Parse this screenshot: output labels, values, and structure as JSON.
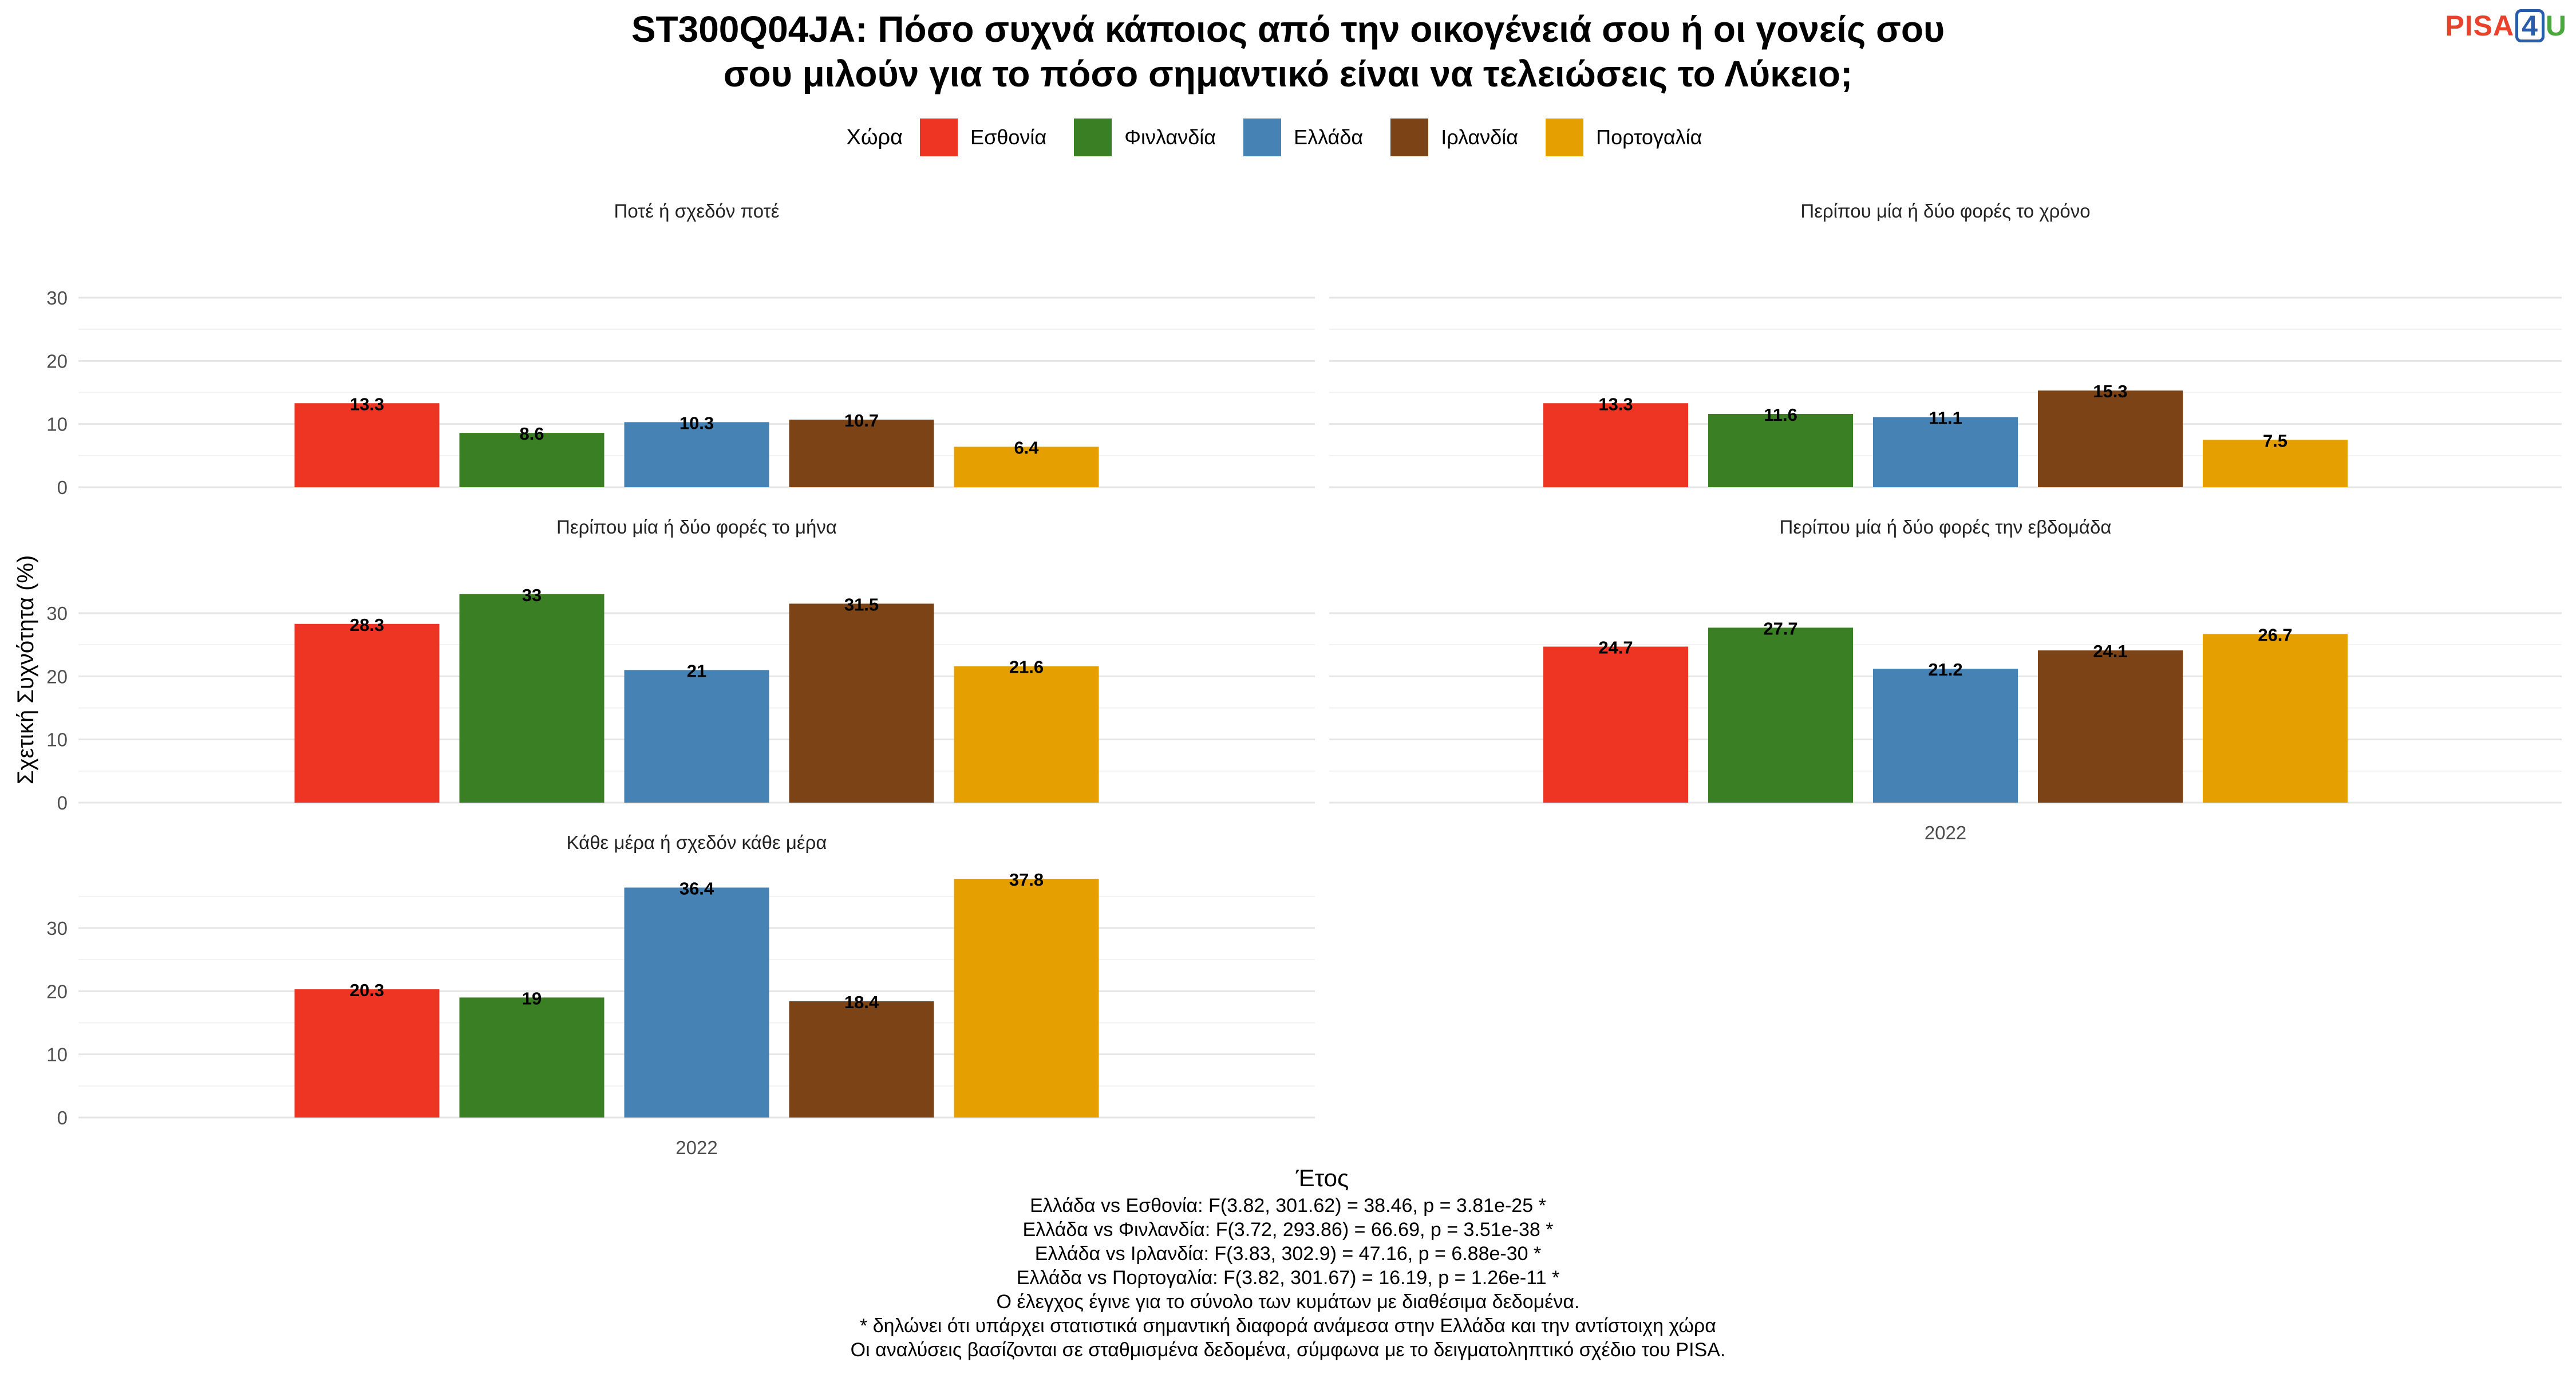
{
  "title_line1": "ST300Q04JA: Πόσο συχνά κάποιος από την οικογένειά σου ή οι γονείς σου",
  "title_line2": "σου μιλούν για το πόσο σημαντικό είναι να τελειώσεις το Λύκειο;",
  "logo": {
    "pisa": "PISA",
    "four": "4",
    "u": "U"
  },
  "legend": {
    "title": "Χώρα",
    "items": [
      {
        "name": "Εσθονία",
        "color": "#ee3524"
      },
      {
        "name": "Φινλανδία",
        "color": "#3a7f23"
      },
      {
        "name": "Ελλάδα",
        "color": "#4682b4"
      },
      {
        "name": "Ιρλανδία",
        "color": "#7b4316"
      },
      {
        "name": "Πορτογαλία",
        "color": "#e5a000"
      }
    ]
  },
  "chart_data": {
    "type": "bar",
    "xlabel": "Έτος",
    "ylabel": "Σχετική Συχνότητα (%)",
    "categories": [
      "2022"
    ],
    "series_names": [
      "Εσθονία",
      "Φινλανδία",
      "Ελλάδα",
      "Ιρλανδία",
      "Πορτογαλία"
    ],
    "y_ticks": [
      0,
      10,
      20,
      30
    ],
    "grid": true,
    "legend_position": "top",
    "panels": [
      {
        "title": "Ποτέ ή σχεδόν ποτέ",
        "values": [
          13.3,
          8.6,
          10.3,
          10.7,
          6.4
        ],
        "labels": [
          "13.3",
          "8.6",
          "10.3",
          "10.7",
          "6.4"
        ],
        "ylim": [
          0,
          33
        ]
      },
      {
        "title": "Περίπου μία ή δύο φορές το χρόνο",
        "values": [
          13.3,
          11.6,
          11.1,
          15.3,
          7.5
        ],
        "labels": [
          "13.3",
          "11.6",
          "11.1",
          "15.3",
          "7.5"
        ],
        "ylim": [
          0,
          33
        ]
      },
      {
        "title": "Περίπου μία ή δύο φορές το μήνα",
        "values": [
          28.3,
          33,
          21,
          31.5,
          21.6
        ],
        "labels": [
          "28.3",
          "33",
          "21",
          "31.5",
          "21.6"
        ],
        "ylim": [
          0,
          33
        ]
      },
      {
        "title": "Περίπου μία ή δύο φορές την εβδομάδα",
        "values": [
          24.7,
          27.7,
          21.2,
          24.1,
          26.7
        ],
        "labels": [
          "24.7",
          "27.7",
          "21.2",
          "24.1",
          "26.7"
        ],
        "ylim": [
          0,
          33
        ]
      },
      {
        "title": "Κάθε μέρα ή σχεδόν κάθε μέρα",
        "values": [
          20.3,
          19,
          36.4,
          18.4,
          37.8
        ],
        "labels": [
          "20.3",
          "19",
          "36.4",
          "18.4",
          "37.8"
        ],
        "ylim": [
          0,
          37.8
        ]
      }
    ]
  },
  "footer_lines": [
    "Ελλάδα vs Εσθονία: F(3.82, 301.62) = 38.46, p = 3.81e-25 *",
    "Ελλάδα vs Φινλανδία: F(3.72, 293.86) = 66.69, p = 3.51e-38 *",
    "Ελλάδα vs Ιρλανδία: F(3.83, 302.9) = 47.16, p = 6.88e-30 *",
    "Ελλάδα vs Πορτογαλία: F(3.82, 301.67) = 16.19, p = 1.26e-11 *",
    "Ο έλεγχος έγινε για το σύνολο των κυμάτων με διαθέσιμα δεδομένα.",
    "* δηλώνει ότι υπάρχει στατιστικά σημαντική διαφορά ανάμεσα στην Ελλάδα και την αντίστοιχη χώρα",
    "Οι αναλύσεις βασίζονται σε σταθμισμένα δεδομένα, σύμφωνα με το δειγματοληπτικό σχέδιο του PISA."
  ]
}
